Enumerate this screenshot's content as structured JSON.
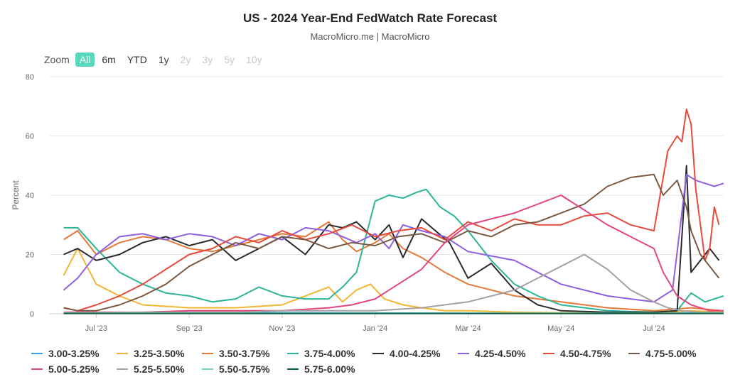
{
  "header": {
    "title": "US - 2024 Year-End FedWatch Rate Forecast",
    "subtitle": "MacroMicro.me | MacroMicro"
  },
  "zoom": {
    "label": "Zoom",
    "buttons": [
      {
        "label": "All",
        "state": "active"
      },
      {
        "label": "6m",
        "state": "enabled"
      },
      {
        "label": "YTD",
        "state": "enabled"
      },
      {
        "label": "1y",
        "state": "enabled"
      },
      {
        "label": "2y",
        "state": "disabled"
      },
      {
        "label": "3y",
        "state": "disabled"
      },
      {
        "label": "5y",
        "state": "disabled"
      },
      {
        "label": "10y",
        "state": "disabled"
      }
    ]
  },
  "chart_data": {
    "type": "line",
    "title": "US - 2024 Year-End FedWatch Rate Forecast",
    "xlabel": "",
    "ylabel": "Percent",
    "ylim": [
      0,
      80
    ],
    "yticks": [
      0,
      20,
      40,
      60,
      80
    ],
    "xlim": [
      0,
      14.5
    ],
    "x_ticks": [
      {
        "label": "Jul '23",
        "x": 1
      },
      {
        "label": "Sep '23",
        "x": 3
      },
      {
        "label": "Nov '23",
        "x": 5
      },
      {
        "label": "Jan '24",
        "x": 7
      },
      {
        "label": "Mar '24",
        "x": 9
      },
      {
        "label": "May '24",
        "x": 11
      },
      {
        "label": "Jul '24",
        "x": 13
      }
    ],
    "x_unit": "months since Jun 1, 2023 (approx.)",
    "grid": true,
    "legend": "bottom",
    "series": [
      {
        "name": "3.00-3.25%",
        "color": "#3aa0e8",
        "x": [
          0.3,
          3,
          6,
          9,
          12,
          13.8,
          14.5
        ],
        "y": [
          0.3,
          0.4,
          0.3,
          0.2,
          0.1,
          0.3,
          0.5
        ]
      },
      {
        "name": "3.25-3.50%",
        "color": "#f2b632",
        "x": [
          0.3,
          0.6,
          1,
          1.5,
          2,
          3,
          4,
          5,
          5.5,
          6,
          6.3,
          6.6,
          6.9,
          7.2,
          7.6,
          8,
          8.5,
          9,
          10,
          11,
          12,
          13,
          13.8,
          14.5
        ],
        "y": [
          13,
          22,
          10,
          6,
          3,
          2,
          2,
          3,
          6,
          9,
          4,
          8,
          10,
          5,
          3,
          2,
          1,
          1,
          0.5,
          0.3,
          0.3,
          0.3,
          1,
          0.5
        ]
      },
      {
        "name": "3.50-3.75%",
        "color": "#e5793a",
        "x": [
          0.3,
          0.6,
          1,
          1.5,
          2,
          2.5,
          3,
          3.5,
          4,
          4.5,
          5,
          5.5,
          6,
          6.3,
          6.6,
          7,
          7.3,
          7.6,
          8,
          8.5,
          9,
          10,
          11,
          12,
          13,
          13.8,
          14.5
        ],
        "y": [
          25,
          28,
          20,
          24,
          26,
          25,
          22,
          21,
          23,
          25,
          27,
          26,
          31,
          25,
          21,
          24,
          27,
          22,
          19,
          14,
          10,
          6,
          4,
          2,
          1,
          2,
          1
        ]
      },
      {
        "name": "3.75-4.00%",
        "color": "#2bb596",
        "x": [
          0.3,
          0.6,
          1,
          1.5,
          2,
          2.5,
          3,
          3.5,
          4,
          4.5,
          5,
          5.5,
          6,
          6.3,
          6.6,
          7,
          7.3,
          7.6,
          7.9,
          8.1,
          8.4,
          8.7,
          9,
          9.5,
          10,
          10.5,
          11,
          12,
          13,
          13.5,
          13.8,
          14.1,
          14.5
        ],
        "y": [
          29,
          29,
          22,
          14,
          10,
          7,
          6,
          4,
          5,
          9,
          6,
          5,
          5,
          9,
          14,
          38,
          40,
          39,
          41,
          42,
          36,
          33,
          28,
          18,
          10,
          6,
          3,
          1,
          0.5,
          1,
          7,
          4,
          6
        ]
      },
      {
        "name": "4.00-4.25%",
        "color": "#2b2b30",
        "x": [
          0.3,
          0.6,
          1,
          1.5,
          2,
          2.5,
          3,
          3.5,
          4,
          4.5,
          5,
          5.5,
          6,
          6.3,
          6.6,
          7,
          7.3,
          7.6,
          8,
          8.3,
          8.6,
          9,
          9.5,
          10,
          10.5,
          11,
          12,
          13,
          13.5,
          13.7,
          13.8,
          14.0,
          14.2,
          14.4
        ],
        "y": [
          20,
          22,
          18,
          20,
          24,
          26,
          23,
          25,
          18,
          22,
          26,
          20,
          30,
          29,
          31,
          25,
          30,
          19,
          32,
          28,
          24,
          12,
          17,
          8,
          3,
          1,
          0.5,
          0.5,
          1,
          50,
          14,
          18,
          22,
          18
        ]
      },
      {
        "name": "4.25-4.50%",
        "color": "#8e5fe0",
        "x": [
          0.3,
          0.6,
          1,
          1.5,
          2,
          2.5,
          3,
          3.5,
          4,
          4.5,
          5,
          5.5,
          6,
          6.3,
          6.6,
          7,
          7.3,
          7.6,
          8,
          8.5,
          9,
          10,
          11,
          12,
          13,
          13.4,
          13.7,
          13.9,
          14.1,
          14.3,
          14.5
        ],
        "y": [
          8,
          12,
          20,
          26,
          27,
          25,
          27,
          26,
          23,
          27,
          25,
          29,
          28,
          26,
          24,
          27,
          22,
          30,
          28,
          26,
          21,
          18,
          10,
          6,
          4,
          8,
          47,
          45,
          44,
          43,
          44
        ]
      },
      {
        "name": "4.50-4.75%",
        "color": "#e64b3c",
        "x": [
          0.3,
          0.6,
          1,
          1.5,
          2,
          2.5,
          3,
          3.5,
          4,
          4.5,
          5,
          5.5,
          6,
          6.5,
          7,
          7.5,
          8,
          8.5,
          9,
          9.5,
          10,
          10.5,
          11,
          11.5,
          12,
          12.5,
          13,
          13.3,
          13.5,
          13.6,
          13.7,
          13.8,
          13.9,
          14.0,
          14.1,
          14.2,
          14.3,
          14.4
        ],
        "y": [
          2,
          1,
          3,
          6,
          10,
          15,
          20,
          22,
          26,
          24,
          28,
          25,
          27,
          30,
          26,
          28,
          29,
          25,
          31,
          28,
          32,
          30,
          30,
          33,
          34,
          30,
          28,
          55,
          60,
          58,
          69,
          64,
          42,
          30,
          18,
          22,
          36,
          30
        ]
      },
      {
        "name": "4.75-5.00%",
        "color": "#7a5a44",
        "x": [
          0.3,
          0.6,
          1,
          1.5,
          2,
          2.5,
          3,
          3.5,
          4,
          4.5,
          5,
          5.5,
          6,
          6.5,
          7,
          7.5,
          8,
          8.5,
          9,
          9.5,
          10,
          10.5,
          11,
          11.5,
          12,
          12.5,
          13,
          13.2,
          13.5,
          13.7,
          13.8,
          14.0,
          14.2,
          14.4
        ],
        "y": [
          2,
          1,
          1,
          3,
          6,
          10,
          16,
          20,
          24,
          22,
          26,
          25,
          22,
          24,
          23,
          26,
          27,
          24,
          28,
          26,
          30,
          31,
          34,
          37,
          43,
          46,
          47,
          40,
          45,
          36,
          28,
          20,
          16,
          12
        ]
      },
      {
        "name": "5.00-5.25%",
        "color": "#e2457f",
        "x": [
          0.3,
          1,
          2,
          3,
          4,
          5,
          6,
          6.5,
          7,
          7.5,
          8,
          8.5,
          9,
          9.5,
          10,
          10.5,
          11,
          11.5,
          12,
          12.5,
          13,
          13.2,
          13.5,
          13.8,
          14.0,
          14.2,
          14.5
        ],
        "y": [
          0.5,
          0.5,
          0.5,
          1,
          1,
          1,
          2,
          3,
          5,
          10,
          15,
          24,
          30,
          32,
          34,
          37,
          40,
          35,
          30,
          26,
          22,
          14,
          6,
          3,
          2,
          1,
          1
        ]
      },
      {
        "name": "5.25-5.50%",
        "color": "#a8a0a0",
        "x": [
          0.3,
          1,
          2,
          3,
          4,
          5,
          6,
          7,
          8,
          9,
          10,
          10.5,
          11,
          11.5,
          12,
          12.5,
          13,
          13.3,
          13.6,
          14.0,
          14.5
        ],
        "y": [
          0.3,
          0.3,
          0.5,
          0.5,
          0.5,
          1,
          1,
          1,
          2,
          4,
          8,
          12,
          16,
          20,
          15,
          8,
          4,
          2,
          1,
          0.5,
          0.3
        ]
      },
      {
        "name": "5.50-5.75%",
        "color": "#7fd8b8",
        "x": [
          0.3,
          3,
          6,
          9,
          12,
          14.5
        ],
        "y": [
          0.2,
          0.2,
          0.2,
          0.2,
          0.2,
          0.2
        ]
      },
      {
        "name": "5.75-6.00%",
        "color": "#0b5e4a",
        "x": [
          0.3,
          3,
          6,
          9,
          12,
          14.5
        ],
        "y": [
          0.1,
          0.1,
          0.1,
          0.1,
          0.1,
          0.1
        ]
      }
    ]
  }
}
